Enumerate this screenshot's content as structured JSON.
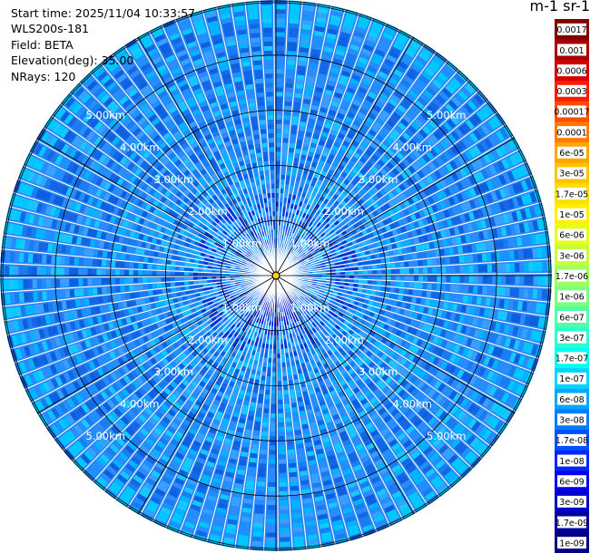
{
  "info": {
    "start_time": "Start time: 2025/11/04 10:33:57",
    "instrument": "WLS200s-181",
    "field": "Field: BETA",
    "elevation": "Elevation(deg): 35.00",
    "nrays": "NRays: 120"
  },
  "colorbar": {
    "units_label": "m-1 sr-1",
    "labels": [
      "0.0017",
      "0.001",
      "0.0006",
      "0.0003",
      "0.00017",
      "0.0001",
      "6e-05",
      "3e-05",
      "1.7e-05",
      "1e-05",
      "6e-06",
      "3e-06",
      "1.7e-06",
      "1e-06",
      "6e-07",
      "3e-07",
      "1.7e-07",
      "1e-07",
      "6e-08",
      "3e-08",
      "1.7e-08",
      "1e-08",
      "6e-09",
      "3e-09",
      "1.7e-09",
      "1e-09"
    ],
    "colors": [
      "#800000",
      "#a80000",
      "#d40000",
      "#ff1a00",
      "#ff4d00",
      "#ff7a00",
      "#ffa500",
      "#ffc300",
      "#ffe000",
      "#fff200",
      "#e6ff1a",
      "#c8ff3c",
      "#a0ff60",
      "#7cff7c",
      "#50ffa8",
      "#28ffd2",
      "#00fff2",
      "#00d4ff",
      "#00a8ff",
      "#007cff",
      "#0050ff",
      "#0028ff",
      "#0000f0",
      "#0000c8",
      "#00009c",
      "#000080"
    ],
    "label_text_dark": [
      "0.0017",
      "0.001",
      "0.0006",
      "0.0003",
      "0.00017",
      "0.0001",
      "6e-05",
      "3e-05",
      "1.7e-05",
      "1e-05",
      "6e-06",
      "3e-06",
      "1.7e-06",
      "1e-06",
      "6e-07",
      "3e-07",
      "1.7e-07",
      "1e-07",
      "6e-08",
      "3e-08"
    ]
  },
  "chart_data": {
    "type": "heatmap",
    "projection": "polar-ppi",
    "n_rays": 120,
    "range_rings_km": [
      1,
      2,
      3,
      4,
      5
    ],
    "max_range_km": 5.0,
    "ring_labels": [
      "1.00km",
      "2.00km",
      "3.00km",
      "4.00km",
      "5.00km"
    ],
    "spoke_interval_deg": 30,
    "background_level": "1e-07 to 6e-08",
    "near_center_level": "1e-08 to 3e-09",
    "colorbar_scale": "log",
    "colorbar_range": [
      1e-09,
      0.0017
    ]
  }
}
